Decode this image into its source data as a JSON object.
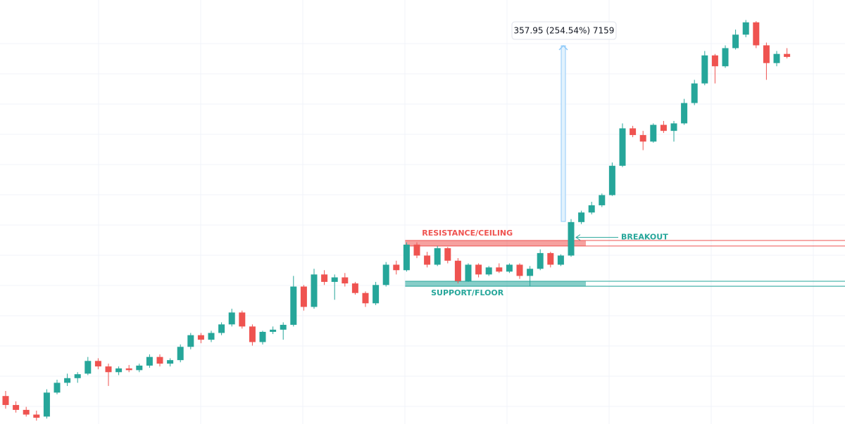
{
  "chart_data": {
    "type": "candlestick",
    "log_scale": true,
    "ylim": [
      32.7,
      693
    ],
    "up_color": "#26a69a",
    "down_color": "#ef5350",
    "open": [
      40,
      37.5,
      36.2,
      35,
      34.5,
      41,
      44,
      45.5,
      47,
      51.5,
      49.5,
      47.5,
      48.8,
      48.2,
      49.8,
      53,
      50.5,
      51.8,
      57,
      62,
      60,
      63,
      67,
      73,
      66,
      59,
      63.5,
      64.5,
      66.8,
      88,
      76,
      96,
      91,
      94,
      90,
      84,
      78,
      89,
      103,
      99,
      119,
      110,
      103,
      116,
      106,
      91.5,
      103,
      96,
      101,
      98,
      103,
      95,
      100,
      112,
      103,
      110,
      140,
      150,
      158,
      170,
      210,
      275,
      262,
      250,
      282,
      270,
      285,
      330,
      380,
      465,
      430,
      490,
      540,
      590,
      500,
      440,
      470
    ],
    "high": [
      41.5,
      38.5,
      37,
      36,
      42,
      45,
      47,
      47.5,
      53,
      52.5,
      50.5,
      49.5,
      50,
      50.5,
      54,
      54,
      52.5,
      58,
      63,
      63,
      64,
      68,
      75,
      74,
      67,
      64,
      66,
      68,
      95,
      89,
      100,
      99,
      96,
      97,
      91,
      85,
      91,
      105,
      106,
      121,
      121,
      113,
      118,
      117,
      108,
      104,
      104,
      102,
      104,
      104,
      104,
      102,
      115,
      113,
      111,
      143,
      152,
      162,
      172,
      215,
      285,
      280,
      270,
      285,
      290,
      290,
      340,
      390,
      480,
      470,
      500,
      560,
      600,
      595,
      510,
      480,
      490
    ],
    "low": [
      36.5,
      35.5,
      34.5,
      33.5,
      34,
      40.5,
      43,
      44,
      46.5,
      48.5,
      43,
      46.5,
      47.5,
      47.5,
      49,
      49.5,
      49.5,
      51,
      56,
      58.5,
      59,
      62,
      66,
      65,
      57.5,
      58,
      62.5,
      60,
      66,
      74,
      75,
      89,
      80,
      88,
      83,
      76,
      77,
      88,
      96,
      98,
      108,
      101,
      102,
      104,
      90,
      91,
      94,
      95,
      97,
      97,
      93,
      88,
      99,
      101,
      102,
      109,
      138,
      148,
      156,
      169,
      208,
      258,
      235,
      248,
      266,
      250,
      282,
      325,
      375,
      380,
      425,
      485,
      530,
      490,
      390,
      430,
      455
    ],
    "close": [
      37.5,
      36.2,
      35,
      34.2,
      41,
      44,
      45.5,
      46.8,
      51.5,
      49.5,
      47.5,
      48.8,
      48.2,
      49.8,
      53,
      50.5,
      51.8,
      57,
      62,
      60,
      63,
      67,
      73,
      66,
      59,
      63.5,
      64.5,
      66.8,
      88,
      76,
      96,
      91,
      94,
      90,
      84,
      78,
      89,
      103,
      99,
      119,
      110,
      103,
      116,
      106,
      91.5,
      103,
      96,
      101,
      98,
      103,
      95,
      100,
      112,
      103,
      110,
      140,
      150,
      158,
      170,
      210,
      275,
      262,
      250,
      282,
      270,
      285,
      330,
      380,
      465,
      430,
      490,
      540,
      590,
      500,
      440,
      470,
      460
    ],
    "zones": [
      {
        "label": "RESISTANCE/CEILING",
        "low": 117.8,
        "high": 122.6,
        "color": "#ef5350"
      },
      {
        "label": "SUPPORT/FLOOR",
        "low": 88.2,
        "high": 91.4,
        "color": "#26a69a"
      }
    ],
    "measure": {
      "label": "357.95 (254.54%) 7159",
      "from": 140.62,
      "to": 498.57,
      "color": "#90caf9"
    },
    "annotation": {
      "label": "BREAKOUT",
      "color": "#26a69a"
    }
  }
}
